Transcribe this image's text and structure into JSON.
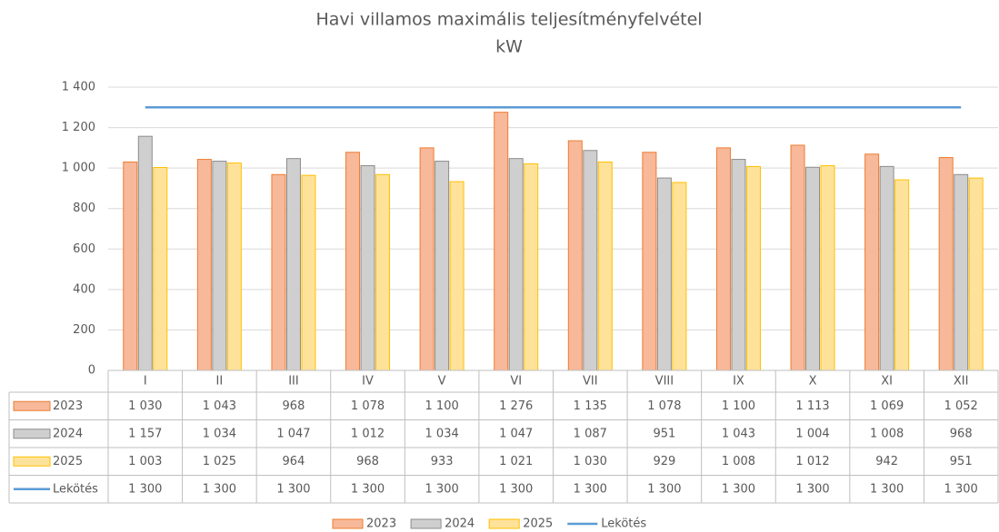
{
  "chart_data": {
    "type": "bar",
    "title": "Havi villamos maximális teljesítményfelvétel",
    "subtitle": "kW",
    "categories": [
      "I",
      "II",
      "III",
      "IV",
      "V",
      "VI",
      "VII",
      "VIII",
      "IX",
      "X",
      "XI",
      "XII"
    ],
    "ylim": [
      0,
      1400
    ],
    "yticks": [
      0,
      200,
      400,
      600,
      800,
      {
        "value": 1000,
        "label": "1 000"
      },
      {
        "value": 1200,
        "label": "1 200"
      },
      {
        "value": 1400,
        "label": "1 400"
      }
    ],
    "grid": true,
    "legend": "bottom",
    "series": [
      {
        "name": "2023",
        "type": "bar",
        "color": "#ed7d31",
        "fill": "#f8b89a",
        "values": [
          1030,
          1043,
          968,
          1078,
          1100,
          1276,
          1135,
          1078,
          1100,
          1113,
          1069,
          1052
        ],
        "value_labels": [
          "1 030",
          "1 043",
          "968",
          "1 078",
          "1 100",
          "1 276",
          "1 135",
          "1 078",
          "1 100",
          "1 113",
          "1 069",
          "1 052"
        ]
      },
      {
        "name": "2024",
        "type": "bar",
        "color": "#8c8c8c",
        "fill": "#cfcfcf",
        "values": [
          1157,
          1034,
          1047,
          1012,
          1034,
          1047,
          1087,
          951,
          1043,
          1004,
          1008,
          968
        ],
        "value_labels": [
          "1 157",
          "1 034",
          "1 047",
          "1 012",
          "1 034",
          "1 047",
          "1 087",
          "951",
          "1 043",
          "1 004",
          "1 008",
          "968"
        ]
      },
      {
        "name": "2025",
        "type": "bar",
        "color": "#ffc000",
        "fill": "#ffe29a",
        "values": [
          1003,
          1025,
          964,
          968,
          933,
          1021,
          1030,
          929,
          1008,
          1012,
          942,
          951
        ],
        "value_labels": [
          "1 003",
          "1 025",
          "964",
          "968",
          "933",
          "1 021",
          "1 030",
          "929",
          "1 008",
          "1 012",
          "942",
          "951"
        ]
      },
      {
        "name": "Lekötés",
        "type": "line",
        "color": "#5b9bd5",
        "values": [
          1300,
          1300,
          1300,
          1300,
          1300,
          1300,
          1300,
          1300,
          1300,
          1300,
          1300,
          1300
        ],
        "value_labels": [
          "1 300",
          "1 300",
          "1 300",
          "1 300",
          "1 300",
          "1 300",
          "1 300",
          "1 300",
          "1 300",
          "1 300",
          "1 300",
          "1 300"
        ]
      }
    ]
  }
}
